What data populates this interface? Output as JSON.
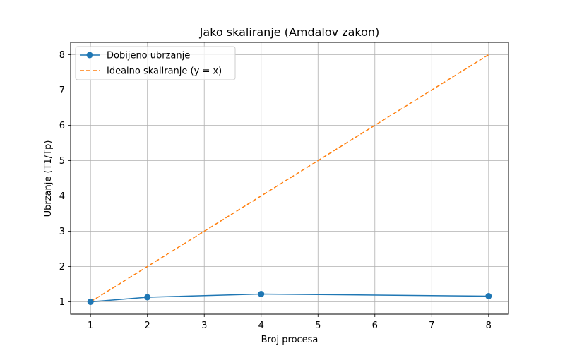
{
  "chart_data": {
    "type": "line",
    "title": "Jako skaliranje (Amdalov zakon)",
    "xlabel": "Broj procesa",
    "ylabel": "Ubrzanje (T1/Tp)",
    "xlim": [
      0.65,
      8.35
    ],
    "ylim": [
      0.65,
      8.35
    ],
    "xticks": [
      1,
      2,
      3,
      4,
      5,
      6,
      7,
      8
    ],
    "yticks": [
      1,
      2,
      3,
      4,
      5,
      6,
      7,
      8
    ],
    "grid": true,
    "legend_position": "top-left",
    "series": [
      {
        "name": "Dobijeno ubrzanje",
        "x": [
          1,
          2,
          4,
          8
        ],
        "y": [
          1.0,
          1.13,
          1.22,
          1.16
        ],
        "color": "#1f77b4",
        "style": "solid",
        "marker": "circle"
      },
      {
        "name": "Idealno skaliranje (y = x)",
        "x": [
          1,
          2,
          4,
          8
        ],
        "y": [
          1,
          2,
          4,
          8
        ],
        "color": "#ff7f0e",
        "style": "dashed",
        "marker": "none"
      }
    ]
  }
}
